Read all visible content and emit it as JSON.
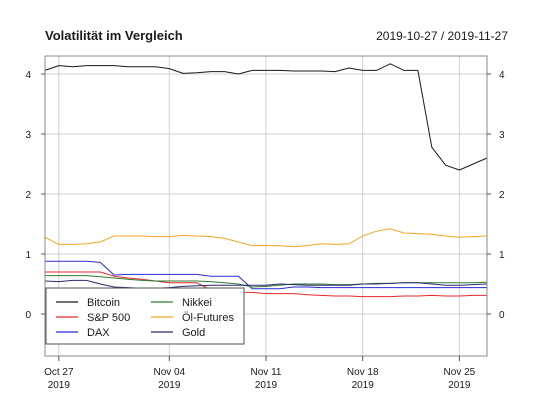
{
  "chart_data": {
    "type": "line",
    "title": "Volatilität im Vergleich",
    "date_range": "2019-10-27 / 2019-11-27",
    "xlabel": "",
    "ylabel": "",
    "ylim": [
      -0.7,
      4.3
    ],
    "y_ticks": [
      0,
      1,
      2,
      3,
      4
    ],
    "x_ticks": [
      {
        "day": 0,
        "label": "Oct 27",
        "year": "2019"
      },
      {
        "day": 8,
        "label": "Nov 04",
        "year": "2019"
      },
      {
        "day": 15,
        "label": "Nov 11",
        "year": "2019"
      },
      {
        "day": 22,
        "label": "Nov 18",
        "year": "2019"
      },
      {
        "day": 29,
        "label": "Nov 25",
        "year": "2019"
      }
    ],
    "x_range": [
      -1,
      31
    ],
    "grid": true,
    "legend_position": "bottom-left",
    "series": [
      {
        "name": "Bitcoin",
        "color": "#1a1a1a",
        "x": [
          -1,
          0,
          1,
          2,
          3,
          4,
          5,
          6,
          7,
          8,
          9,
          10,
          11,
          12,
          13,
          14,
          15,
          16,
          17,
          18,
          19,
          20,
          21,
          22,
          23,
          24,
          25,
          26,
          27,
          28,
          29,
          30,
          31
        ],
        "values": [
          4.06,
          4.14,
          4.12,
          4.14,
          4.14,
          4.14,
          4.12,
          4.12,
          4.12,
          4.09,
          4.01,
          4.02,
          4.04,
          4.04,
          4.0,
          4.06,
          4.06,
          4.06,
          4.05,
          4.05,
          4.05,
          4.04,
          4.1,
          4.06,
          4.06,
          4.17,
          4.06,
          4.06,
          2.78,
          2.48,
          2.4,
          2.5,
          2.6
        ]
      },
      {
        "name": "S&P 500",
        "color": "#e8292b",
        "x": [
          -1,
          0,
          1,
          2,
          3,
          4,
          5,
          6,
          7,
          8,
          9,
          10,
          11,
          12,
          13,
          14,
          15,
          16,
          17,
          18,
          19,
          20,
          21,
          22,
          23,
          24,
          25,
          26,
          27,
          28,
          29,
          30,
          31
        ],
        "values": [
          0.7,
          0.7,
          0.7,
          0.7,
          0.7,
          0.63,
          0.6,
          0.58,
          0.55,
          0.52,
          0.52,
          0.52,
          0.4,
          0.38,
          0.36,
          0.36,
          0.34,
          0.34,
          0.34,
          0.32,
          0.31,
          0.3,
          0.3,
          0.29,
          0.29,
          0.29,
          0.3,
          0.3,
          0.31,
          0.3,
          0.3,
          0.31,
          0.31
        ]
      },
      {
        "name": "DAX",
        "color": "#2a2ad6",
        "x": [
          -1,
          0,
          1,
          2,
          3,
          4,
          5,
          6,
          7,
          8,
          9,
          10,
          11,
          12,
          13,
          14,
          15,
          16,
          17,
          18,
          19,
          20,
          21,
          22,
          23,
          24,
          25,
          26,
          27,
          28,
          29,
          30,
          31
        ],
        "values": [
          0.88,
          0.88,
          0.88,
          0.88,
          0.86,
          0.65,
          0.66,
          0.66,
          0.66,
          0.66,
          0.66,
          0.66,
          0.63,
          0.63,
          0.63,
          0.42,
          0.42,
          0.42,
          0.45,
          0.45,
          0.44,
          0.44,
          0.44,
          0.44,
          0.44,
          0.44,
          0.44,
          0.44,
          0.44,
          0.44,
          0.44,
          0.44,
          0.44
        ]
      },
      {
        "name": "Nikkei",
        "color": "#2e7d32",
        "x": [
          -1,
          0,
          1,
          2,
          3,
          4,
          5,
          6,
          7,
          8,
          9,
          10,
          11,
          12,
          13,
          14,
          15,
          16,
          17,
          18,
          19,
          20,
          21,
          22,
          23,
          24,
          25,
          26,
          27,
          28,
          29,
          30,
          31
        ],
        "values": [
          0.64,
          0.64,
          0.64,
          0.64,
          0.62,
          0.6,
          0.58,
          0.56,
          0.55,
          0.55,
          0.55,
          0.55,
          0.54,
          0.52,
          0.5,
          0.45,
          0.46,
          0.48,
          0.5,
          0.5,
          0.5,
          0.49,
          0.49,
          0.5,
          0.51,
          0.51,
          0.52,
          0.52,
          0.52,
          0.52,
          0.52,
          0.52,
          0.53
        ]
      },
      {
        "name": "Öl-Futures",
        "color": "#f5a623",
        "x": [
          -1,
          0,
          1,
          2,
          3,
          4,
          5,
          6,
          7,
          8,
          9,
          10,
          11,
          12,
          13,
          14,
          15,
          16,
          17,
          18,
          19,
          20,
          21,
          22,
          23,
          24,
          25,
          26,
          27,
          28,
          29,
          30,
          31
        ],
        "values": [
          1.28,
          1.16,
          1.16,
          1.17,
          1.2,
          1.3,
          1.3,
          1.3,
          1.29,
          1.29,
          1.31,
          1.3,
          1.29,
          1.26,
          1.2,
          1.14,
          1.14,
          1.14,
          1.12,
          1.14,
          1.17,
          1.16,
          1.17,
          1.3,
          1.38,
          1.42,
          1.35,
          1.34,
          1.33,
          1.3,
          1.28,
          1.29,
          1.3
        ]
      },
      {
        "name": "Gold",
        "color": "#2b2c6e",
        "x": [
          -1,
          0,
          1,
          2,
          3,
          4,
          5,
          6,
          7,
          8,
          9,
          10,
          11,
          12,
          13,
          14,
          15,
          16,
          17,
          18,
          19,
          20,
          21,
          22,
          23,
          24,
          25,
          26,
          27,
          28,
          29,
          30,
          31
        ],
        "values": [
          0.55,
          0.54,
          0.56,
          0.56,
          0.5,
          0.45,
          0.44,
          0.43,
          0.43,
          0.44,
          0.46,
          0.47,
          0.48,
          0.48,
          0.48,
          0.48,
          0.48,
          0.5,
          0.49,
          0.48,
          0.48,
          0.48,
          0.48,
          0.5,
          0.5,
          0.51,
          0.52,
          0.52,
          0.5,
          0.48,
          0.48,
          0.49,
          0.5
        ]
      }
    ]
  }
}
